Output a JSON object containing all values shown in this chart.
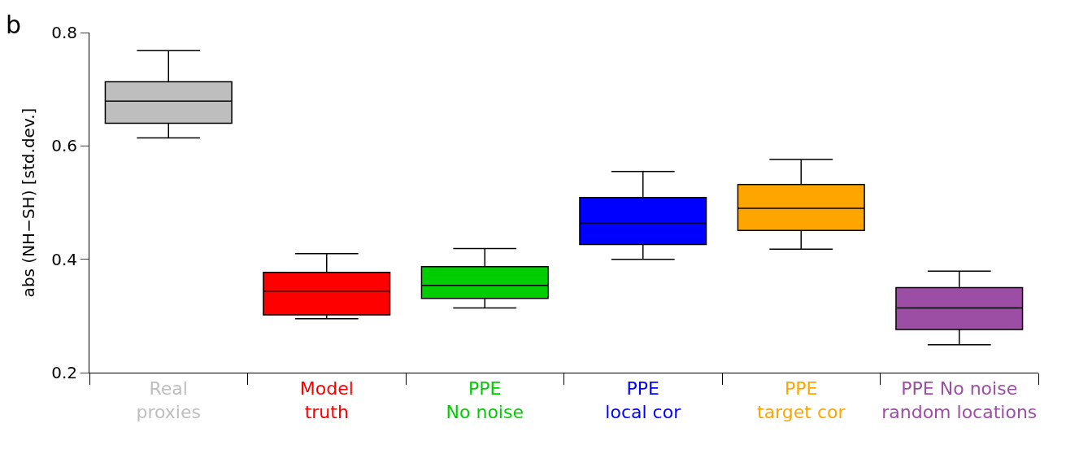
{
  "chart_data": {
    "type": "box",
    "ylabel": "abs (NH−SH) [std.dev.]",
    "annotations": [
      "b"
    ],
    "categories": [
      "Real\nproxies",
      "Model\ntruth",
      "PPE\nNo noise",
      "PPE\nlocal cor",
      "PPE\ntarget cor",
      "PPE No noise\nrandom locations"
    ],
    "colors": [
      "#bebebe",
      "#ff0000",
      "#00cd00",
      "#0000ff",
      "#ffa500",
      "#9b4ea3"
    ],
    "boxes": [
      {
        "low": 0.614,
        "q1": 0.64,
        "median": 0.679,
        "q3": 0.713,
        "high": 0.768
      },
      {
        "low": 0.295,
        "q1": 0.302,
        "median": 0.344,
        "q3": 0.377,
        "high": 0.41
      },
      {
        "low": 0.314,
        "q1": 0.331,
        "median": 0.354,
        "q3": 0.387,
        "high": 0.419
      },
      {
        "low": 0.4,
        "q1": 0.426,
        "median": 0.464,
        "q3": 0.509,
        "high": 0.555
      },
      {
        "low": 0.418,
        "q1": 0.451,
        "median": 0.49,
        "q3": 0.532,
        "high": 0.576
      },
      {
        "low": 0.249,
        "q1": 0.276,
        "median": 0.314,
        "q3": 0.35,
        "high": 0.379
      }
    ],
    "ylim": [
      0.2,
      0.8
    ],
    "yticks": [
      0.2,
      0.4,
      0.6,
      0.8
    ]
  }
}
